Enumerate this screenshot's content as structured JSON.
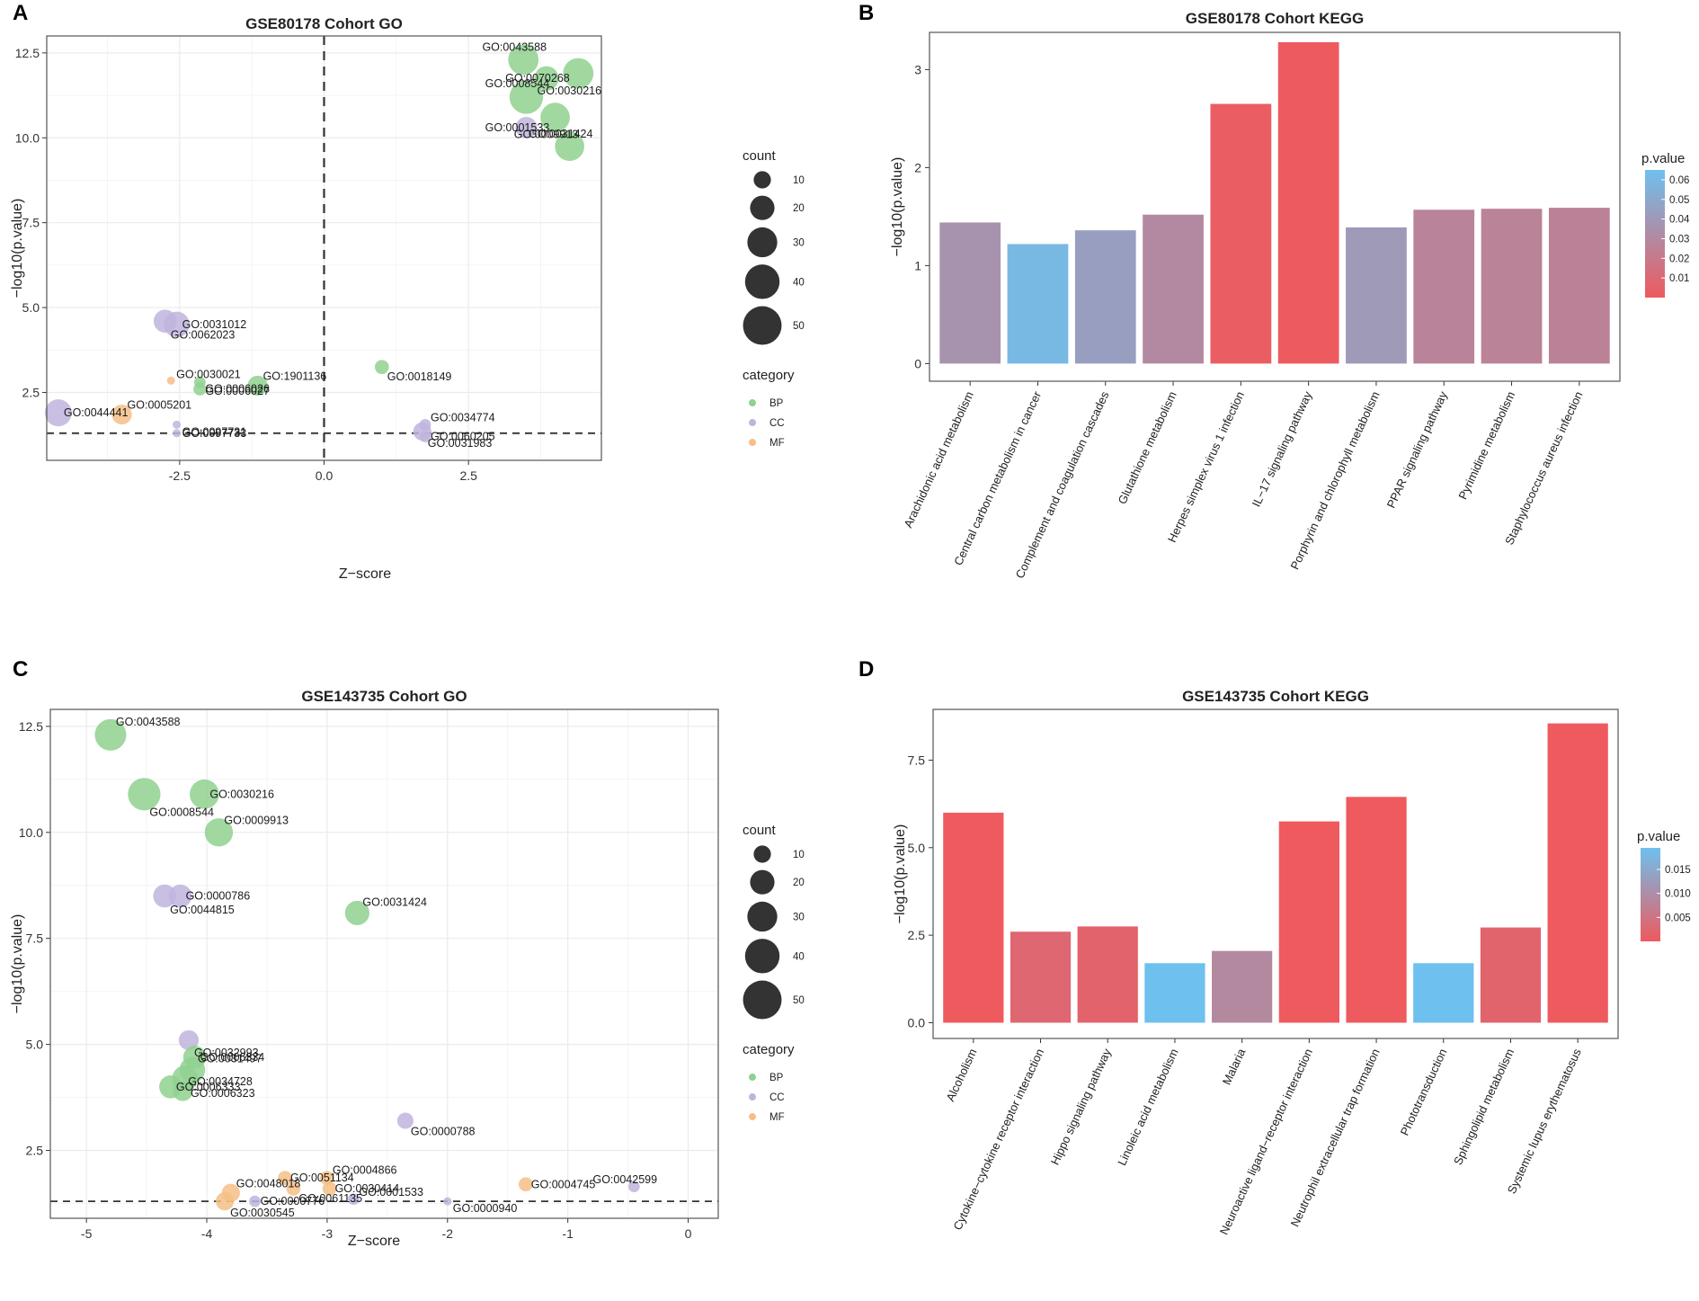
{
  "figure": {
    "panel_letters": [
      "A",
      "B",
      "C",
      "D"
    ],
    "colors": {
      "BP": "#8fd18f",
      "CC": "#bfb4dd",
      "MF": "#f6be86",
      "pmin": "#ee5a5e",
      "pmax": "#6ec0ee",
      "grid": "#ebebeb",
      "dashed": "#333333"
    }
  },
  "chart_data": [
    {
      "type": "scatter",
      "title": "GSE80178 Cohort GO",
      "xlabel": "Z−score",
      "ylabel": "−log10(p.value)",
      "xlim": [
        -4.8,
        4.8
      ],
      "ylim": [
        0.5,
        13.0
      ],
      "xticks": [
        -2.5,
        0.0,
        2.5
      ],
      "xtick_labels": [
        "-2.5",
        "0.0",
        "2.5"
      ],
      "yticks": [
        2.5,
        5.0,
        7.5,
        10.0,
        12.5
      ],
      "ytick_labels": [
        "2.5",
        "5.0",
        "7.5",
        "10.0",
        "12.5"
      ],
      "vline_x": 0,
      "hline_y": 1.3,
      "size_legend": {
        "title": "count",
        "values": [
          10,
          20,
          30,
          40,
          50
        ]
      },
      "category_legend": {
        "title": "category",
        "entries": [
          "BP",
          "CC",
          "MF"
        ]
      },
      "points": [
        {
          "term": "GO:0043588",
          "x": 3.45,
          "y": 12.3,
          "count": 28,
          "category": "BP"
        },
        {
          "term": "GO:0030216",
          "x": 4.4,
          "y": 11.9,
          "count": 28,
          "category": "BP"
        },
        {
          "term": "GO:0070268",
          "x": 3.85,
          "y": 11.75,
          "count": 18,
          "category": "BP"
        },
        {
          "term": "GO:0008544",
          "x": 3.5,
          "y": 11.2,
          "count": 34,
          "category": "BP"
        },
        {
          "term": "GO:0009913",
          "x": 4.0,
          "y": 10.6,
          "count": 26,
          "category": "BP"
        },
        {
          "term": "GO:0001533",
          "x": 3.5,
          "y": 10.3,
          "count": 14,
          "category": "CC"
        },
        {
          "term": "GO:0031424",
          "x": 4.25,
          "y": 9.75,
          "count": 26,
          "category": "BP"
        },
        {
          "term": "GO:0062023",
          "x": -2.75,
          "y": 4.6,
          "count": 16,
          "category": "CC"
        },
        {
          "term": "GO:0031012",
          "x": -2.55,
          "y": 4.5,
          "count": 20,
          "category": "CC"
        },
        {
          "term": "GO:0030021",
          "x": -2.65,
          "y": 2.85,
          "count": 2,
          "category": "MF"
        },
        {
          "term": "GO:0006027",
          "x": -2.15,
          "y": 2.8,
          "count": 4,
          "category": "BP"
        },
        {
          "term": "GO:0006026",
          "x": -2.15,
          "y": 2.6,
          "count": 5,
          "category": "BP"
        },
        {
          "term": "GO:1901136",
          "x": -1.15,
          "y": 2.7,
          "count": 12,
          "category": "BP"
        },
        {
          "term": "GO:0018149",
          "x": 1.0,
          "y": 3.25,
          "count": 6,
          "category": "BP"
        },
        {
          "term": "GO:0044441",
          "x": -4.6,
          "y": 1.9,
          "count": 22,
          "category": "CC"
        },
        {
          "term": "GO:0005201",
          "x": -3.5,
          "y": 1.85,
          "count": 12,
          "category": "MF"
        },
        {
          "term": "GO:0097731",
          "x": -2.55,
          "y": 1.55,
          "count": 2,
          "category": "CC"
        },
        {
          "term": "GO:0097733",
          "x": -2.55,
          "y": 1.3,
          "count": 2,
          "category": "CC"
        },
        {
          "term": "GO:0034774",
          "x": 1.75,
          "y": 1.55,
          "count": 4,
          "category": "CC"
        },
        {
          "term": "GO:0031983",
          "x": 1.7,
          "y": 1.35,
          "count": 10,
          "category": "CC"
        },
        {
          "term": "GO:0060205",
          "x": 1.75,
          "y": 1.2,
          "count": 4,
          "category": "CC"
        }
      ]
    },
    {
      "type": "bar",
      "title": "GSE80178 Cohort KEGG",
      "xlabel": "",
      "ylabel": "−log10(p.value)",
      "ylim": [
        -0.18,
        3.38
      ],
      "yticks": [
        0,
        1,
        2,
        3
      ],
      "ytick_labels": [
        "0",
        "1",
        "2",
        "3"
      ],
      "categories": [
        "Arachidonic acid metabolism",
        "Central carbon metabolism in cancer",
        "Complement and coagulation cascades",
        "Glutathione metabolism",
        "Herpes simplex virus 1 infection",
        "IL−17 signaling pathway",
        "Porphyrin and chlorophyll metabolism",
        "PPAR signaling pathway",
        "Pyrimidine metabolism",
        "Staphylococcus aureus infection"
      ],
      "values": [
        1.44,
        1.22,
        1.36,
        1.52,
        2.65,
        3.28,
        1.39,
        1.57,
        1.58,
        1.59
      ],
      "colorbar": {
        "title": "p.value",
        "range": [
          0,
          0.065
        ],
        "ticks": [
          0.01,
          0.02,
          0.03,
          0.04,
          0.05,
          0.06
        ],
        "tick_labels": [
          "0.01",
          "0.02",
          "0.03",
          "0.04",
          "0.05",
          "0.06"
        ]
      }
    },
    {
      "type": "scatter",
      "title": "GSE143735 Cohort GO",
      "xlabel": "Z−score",
      "ylabel": "−log10(p.value)",
      "xlim": [
        -5.3,
        0.25
      ],
      "ylim": [
        0.9,
        12.9
      ],
      "xticks": [
        -5,
        -4,
        -3,
        -2,
        -1,
        0
      ],
      "xtick_labels": [
        "-5",
        "-4",
        "-3",
        "-2",
        "-1",
        "0"
      ],
      "yticks": [
        2.5,
        5.0,
        7.5,
        10.0,
        12.5
      ],
      "ytick_labels": [
        "2.5",
        "5.0",
        "7.5",
        "10.0",
        "12.5"
      ],
      "vline_x": null,
      "hline_y": 1.3,
      "size_legend": {
        "title": "count",
        "values": [
          10,
          20,
          30,
          40,
          50
        ]
      },
      "category_legend": {
        "title": "category",
        "entries": [
          "BP",
          "CC",
          "MF"
        ]
      },
      "points": [
        {
          "term": "GO:0043588",
          "x": -4.8,
          "y": 12.3,
          "count": 30,
          "category": "BP"
        },
        {
          "term": "GO:0008544",
          "x": -4.52,
          "y": 10.9,
          "count": 32,
          "category": "BP"
        },
        {
          "term": "GO:0030216",
          "x": -4.02,
          "y": 10.9,
          "count": 26,
          "category": "BP"
        },
        {
          "term": "GO:0009913",
          "x": -3.9,
          "y": 10.0,
          "count": 24,
          "category": "BP"
        },
        {
          "term": "GO:0044815",
          "x": -4.35,
          "y": 8.5,
          "count": 16,
          "category": "CC"
        },
        {
          "term": "GO:0000786",
          "x": -4.22,
          "y": 8.5,
          "count": 16,
          "category": "CC"
        },
        {
          "term": "GO:0031424",
          "x": -2.75,
          "y": 8.1,
          "count": 18,
          "category": "BP"
        },
        {
          "term": "GO:0032993",
          "x": -4.15,
          "y": 5.1,
          "count": 12,
          "category": "CC"
        },
        {
          "term": "GO:0006334",
          "x": -4.1,
          "y": 4.7,
          "count": 16,
          "category": "BP"
        },
        {
          "term": "GO:0031497",
          "x": -4.12,
          "y": 4.4,
          "count": 20,
          "category": "BP"
        },
        {
          "term": "GO:0006323",
          "x": -4.18,
          "y": 4.2,
          "count": 20,
          "category": "BP"
        },
        {
          "term": "GO:0006333",
          "x": -4.3,
          "y": 4.0,
          "count": 16,
          "category": "BP"
        },
        {
          "term": "GO:0034728",
          "x": -4.2,
          "y": 3.9,
          "count": 12,
          "category": "BP"
        },
        {
          "term": "GO:0000788",
          "x": -2.35,
          "y": 3.2,
          "count": 8,
          "category": "CC"
        },
        {
          "term": "GO:0051134",
          "x": -3.35,
          "y": 1.85,
          "count": 6,
          "category": "MF"
        },
        {
          "term": "GO:0004866",
          "x": -3.0,
          "y": 1.85,
          "count": 6,
          "category": "MF"
        },
        {
          "term": "GO:0061135",
          "x": -3.28,
          "y": 1.6,
          "count": 6,
          "category": "MF"
        },
        {
          "term": "GO:0030414",
          "x": -2.98,
          "y": 1.6,
          "count": 6,
          "category": "MF"
        },
        {
          "term": "GO:0048018",
          "x": -3.8,
          "y": 1.5,
          "count": 10,
          "category": "MF"
        },
        {
          "term": "GO:0030545",
          "x": -3.85,
          "y": 1.3,
          "count": 10,
          "category": "MF"
        },
        {
          "term": "GO:0000776",
          "x": -3.6,
          "y": 1.3,
          "count": 4,
          "category": "CC"
        },
        {
          "term": "GO:0001533",
          "x": -2.78,
          "y": 1.35,
          "count": 4,
          "category": "CC"
        },
        {
          "term": "GO:0000940",
          "x": -2.0,
          "y": 1.3,
          "count": 2,
          "category": "CC"
        },
        {
          "term": "GO:0004745",
          "x": -1.35,
          "y": 1.7,
          "count": 6,
          "category": "MF"
        },
        {
          "term": "GO:0042599",
          "x": -0.45,
          "y": 1.65,
          "count": 4,
          "category": "CC"
        }
      ]
    },
    {
      "type": "bar",
      "title": "GSE143735 Cohort KEGG",
      "xlabel": "",
      "ylabel": "−log10(p.value)",
      "ylim": [
        -0.45,
        8.95
      ],
      "yticks": [
        0.0,
        2.5,
        5.0,
        7.5
      ],
      "ytick_labels": [
        "0.0",
        "2.5",
        "5.0",
        "7.5"
      ],
      "categories": [
        "Alcoholism",
        "Cytokine−cytokine receptor interaction",
        "Hippo signaling pathway",
        "Linoleic acid metabolism",
        "Malaria",
        "Neuroactive ligand−receptor interaction",
        "Neutrophil extracellular trap formation",
        "Phototransduction",
        "Sphingolipid metabolism",
        "Systemic lupus erythematosus"
      ],
      "values": [
        6.0,
        2.6,
        2.75,
        1.7,
        2.05,
        5.75,
        6.45,
        1.7,
        2.72,
        8.55
      ],
      "colorbar": {
        "title": "p.value",
        "range": [
          0,
          0.0195
        ],
        "ticks": [
          0.005,
          0.01,
          0.015
        ],
        "tick_labels": [
          "0.005",
          "0.010",
          "0.015"
        ]
      }
    }
  ]
}
